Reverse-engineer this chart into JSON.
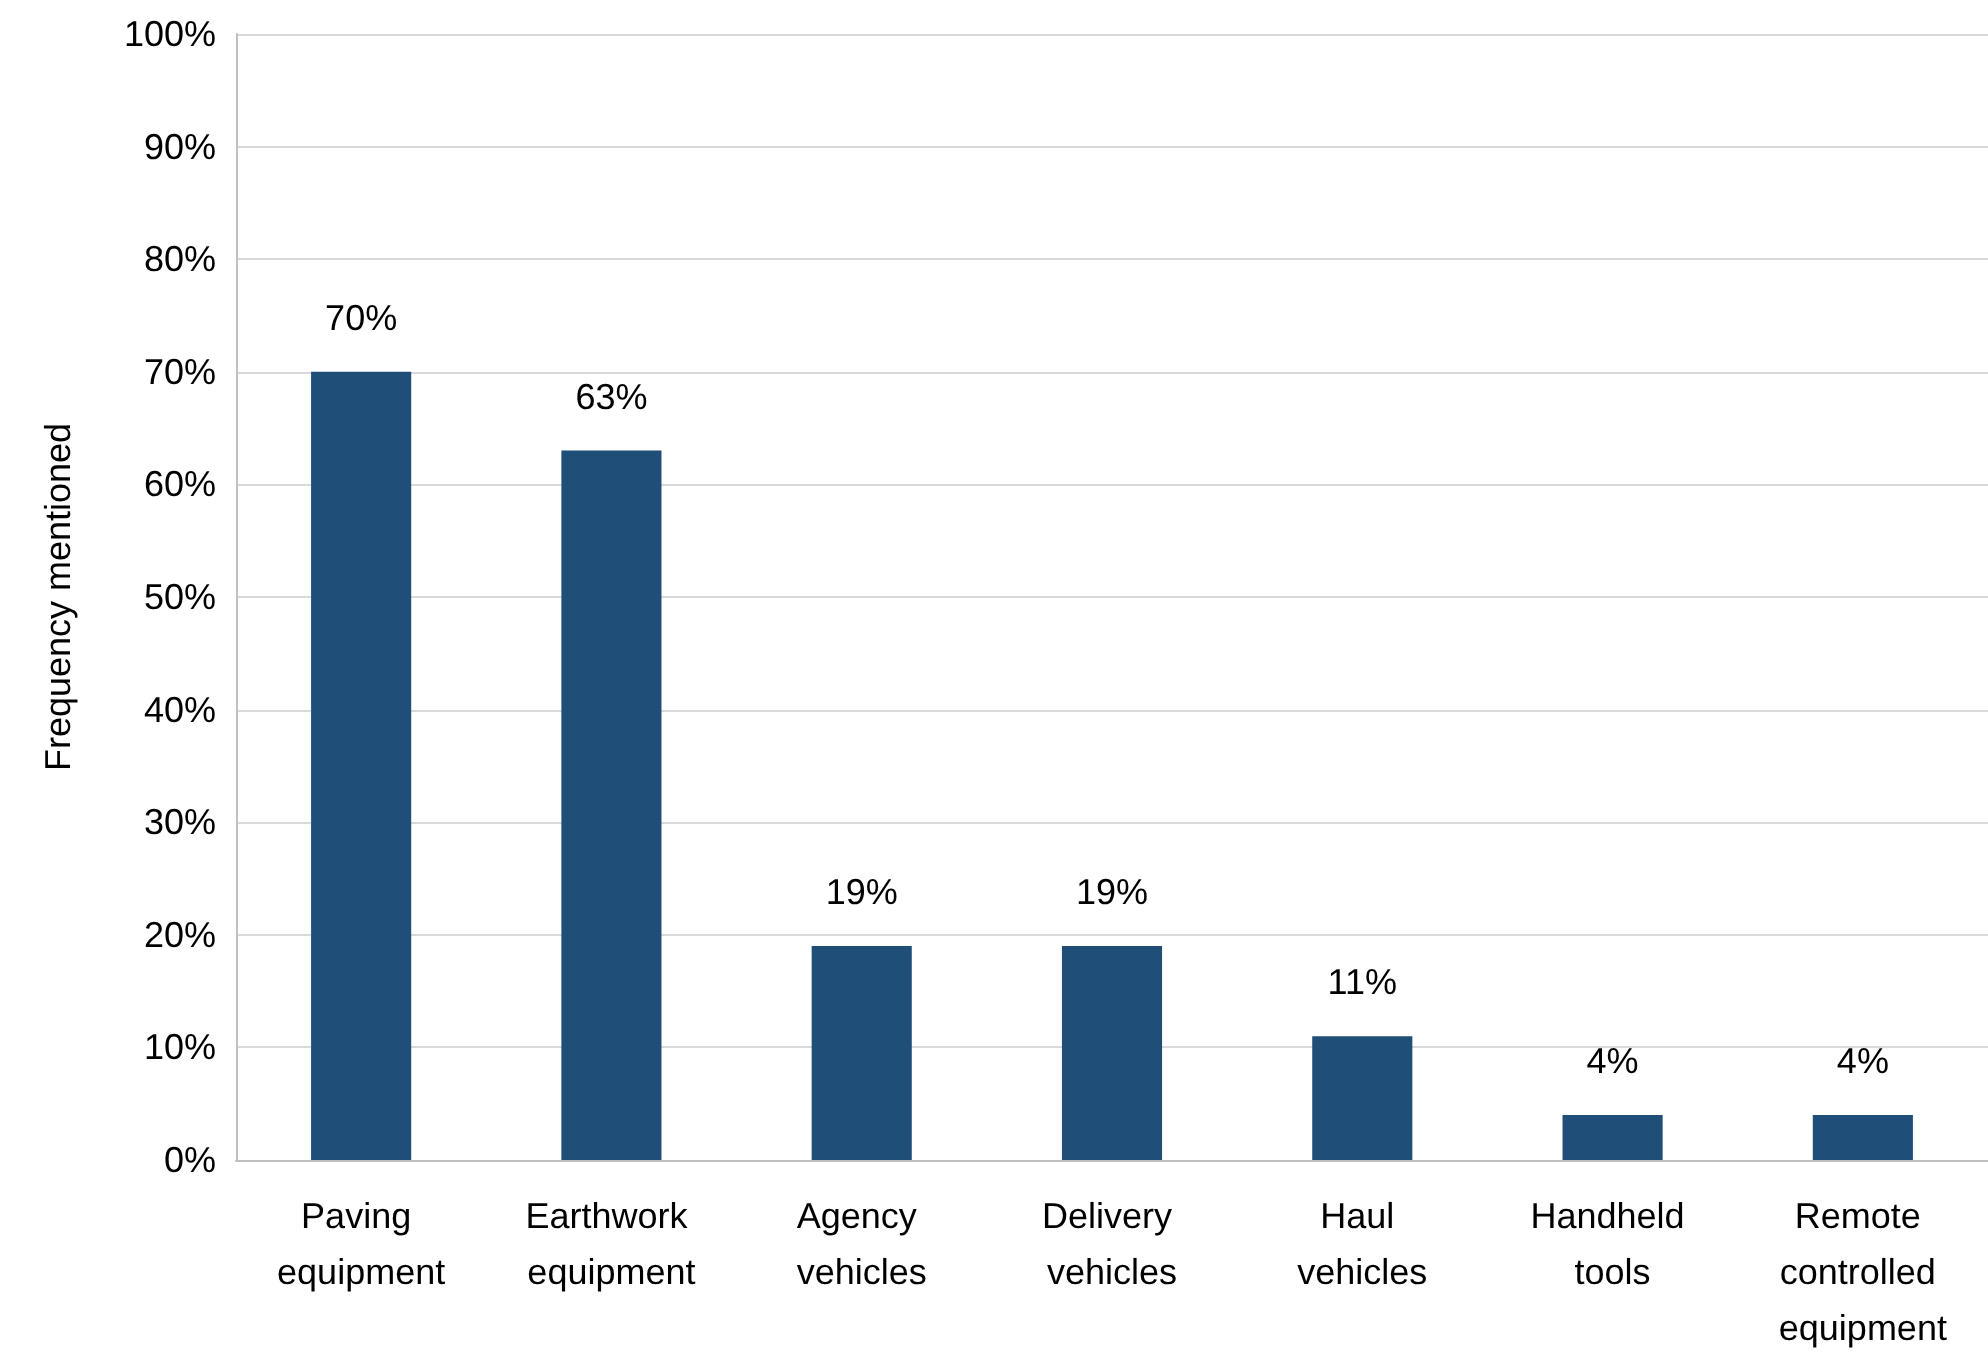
{
  "chart_data": {
    "type": "bar",
    "ylabel": "Frequency mentioned",
    "categories": [
      "Paving equipment",
      "Earthwork equipment",
      "Agency vehicles",
      "Delivery vehicles",
      "Haul vehicles",
      "Handheld tools",
      "Remote controlled equipment"
    ],
    "values": [
      70,
      63,
      19,
      19,
      11,
      4,
      4
    ],
    "value_labels": [
      "70%",
      "63%",
      "19%",
      "19%",
      "11%",
      "4%",
      "4%"
    ],
    "color": "#1f4e79",
    "ylim": [
      0,
      100
    ],
    "yticks": [
      {
        "value": 0,
        "label": "0%"
      },
      {
        "value": 10,
        "label": "10%"
      },
      {
        "value": 20,
        "label": "20%"
      },
      {
        "value": 30,
        "label": "30%"
      },
      {
        "value": 40,
        "label": "40%"
      },
      {
        "value": 50,
        "label": "50%"
      },
      {
        "value": 60,
        "label": "60%"
      },
      {
        "value": 70,
        "label": "70%"
      },
      {
        "value": 80,
        "label": "80%"
      },
      {
        "value": 90,
        "label": "90%"
      },
      {
        "value": 100,
        "label": "100%"
      }
    ],
    "grid": "y"
  }
}
